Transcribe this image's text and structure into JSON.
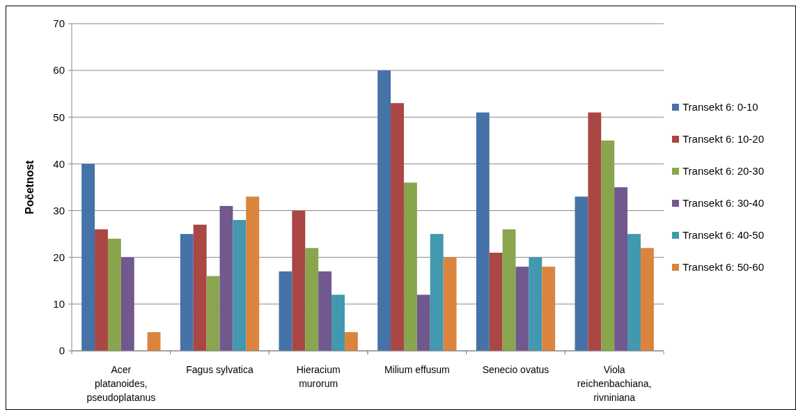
{
  "chart_data": {
    "type": "bar",
    "ylabel": "Početnost",
    "categories": [
      "Acer platanoides, pseudoplatanus",
      "Fagus sylvatica",
      "Hieracium murorum",
      "Milium effusum",
      "Senecio ovatus",
      "Viola reichenbachiana, rivniniana"
    ],
    "series": [
      {
        "name": "Transekt 6: 0-10",
        "color": "#4572a7",
        "values": [
          40,
          25,
          17,
          60,
          51,
          33
        ]
      },
      {
        "name": "Transekt 6: 10-20",
        "color": "#aa4643",
        "values": [
          26,
          27,
          30,
          53,
          21,
          51
        ]
      },
      {
        "name": "Transekt 6: 20-30",
        "color": "#89a54e",
        "values": [
          24,
          16,
          22,
          36,
          26,
          45
        ]
      },
      {
        "name": "Transekt 6: 30-40",
        "color": "#71588f",
        "values": [
          20,
          31,
          17,
          12,
          18,
          35
        ]
      },
      {
        "name": "Transekt 6: 40-50",
        "color": "#4198af",
        "values": [
          0,
          28,
          12,
          25,
          20,
          25
        ]
      },
      {
        "name": "Transekt 6: 50-60",
        "color": "#db843d",
        "values": [
          4,
          33,
          4,
          20,
          18,
          22
        ]
      }
    ],
    "ylim": [
      0,
      70
    ],
    "yticks": [
      0,
      10,
      20,
      30,
      40,
      50,
      60,
      70
    ],
    "grid": "y",
    "legend": "right"
  }
}
